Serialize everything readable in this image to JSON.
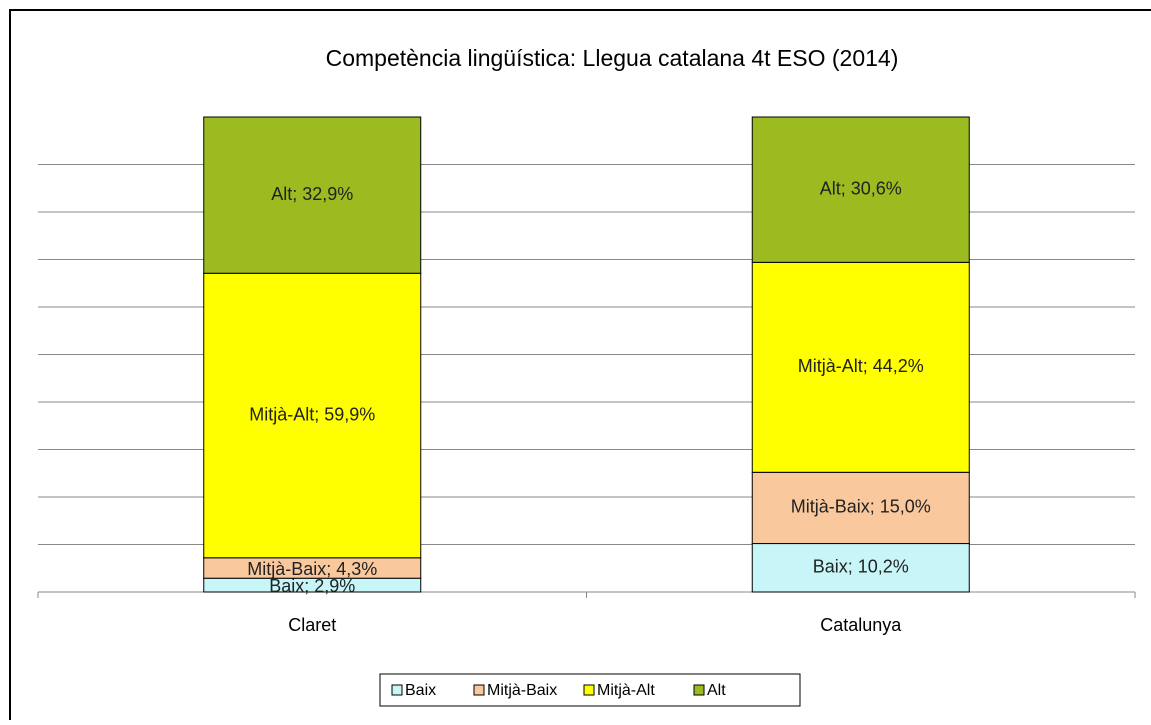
{
  "chart_data": {
    "type": "stacked_bar",
    "title": "Competència  lingüística: Llegua catalana 4t ESO (2014)",
    "categories": [
      "Claret",
      "Catalunya"
    ],
    "series": [
      {
        "name": "Baix",
        "color": "#c8f6f8",
        "values": [
          2.9,
          10.2
        ],
        "value_labels": [
          "Baix; 2,9%",
          "Baix; 10,2%"
        ]
      },
      {
        "name": "Mitjà-Baix",
        "color": "#f9c89d",
        "values": [
          4.3,
          15.0
        ],
        "value_labels": [
          "Mitjà-Baix; 4,3%",
          "Mitjà-Baix; 15,0%"
        ]
      },
      {
        "name": "Mitjà-Alt",
        "color": "#ffff00",
        "values": [
          59.9,
          44.2
        ],
        "value_labels": [
          "Mitjà-Alt; 59,9%",
          "Mitjà-Alt; 44,2%"
        ]
      },
      {
        "name": "Alt",
        "color": "#9bbb20",
        "values": [
          32.9,
          30.6
        ],
        "value_labels": [
          "Alt; 32,9%",
          "Alt; 30,6%"
        ]
      }
    ],
    "ylim": [
      0,
      100
    ],
    "yticks": [
      10,
      20,
      30,
      40,
      50,
      60,
      70,
      80,
      90
    ],
    "grid": true,
    "legend": "bottom"
  }
}
